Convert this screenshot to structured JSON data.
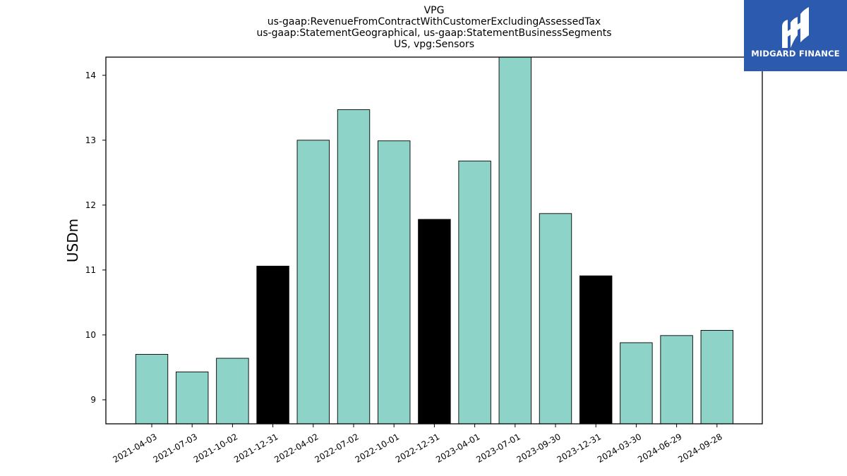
{
  "header": {
    "title_lines": [
      "VPG",
      "us-gaap:RevenueFromContractWithCustomerExcludingAssessedTax",
      "us-gaap:StatementGeographical, us-gaap:StatementBusinessSegments",
      "US, vpg:Sensors"
    ]
  },
  "logo": {
    "text": "MIDGARD FINANCE",
    "background": "#2b5aae"
  },
  "chart_data": {
    "type": "bar",
    "title": "VPG\nus-gaap:RevenueFromContractWithCustomerExcludingAssessedTax\nus-gaap:StatementGeographical, us-gaap:StatementBusinessSegments\nUS, vpg:Sensors",
    "xlabel": "",
    "ylabel": "USDm",
    "ylim": [
      8.63,
      14.28
    ],
    "yticks": [
      9,
      10,
      11,
      12,
      13,
      14
    ],
    "grid": false,
    "categories": [
      "2021-04-03",
      "2021-07-03",
      "2021-10-02",
      "2021-12-31",
      "2022-04-02",
      "2022-07-02",
      "2022-10-01",
      "2022-12-31",
      "2023-04-01",
      "2023-07-01",
      "2023-09-30",
      "2023-12-31",
      "2024-03-30",
      "2024-06-29",
      "2024-09-28"
    ],
    "values": [
      9.7,
      9.43,
      9.64,
      11.06,
      13.0,
      13.47,
      12.99,
      11.78,
      12.68,
      14.28,
      11.87,
      10.91,
      9.88,
      9.99,
      10.07
    ],
    "colors": [
      "#8dd3c7",
      "#8dd3c7",
      "#8dd3c7",
      "#000000",
      "#8dd3c7",
      "#8dd3c7",
      "#8dd3c7",
      "#000000",
      "#8dd3c7",
      "#8dd3c7",
      "#8dd3c7",
      "#000000",
      "#8dd3c7",
      "#8dd3c7",
      "#8dd3c7"
    ]
  }
}
